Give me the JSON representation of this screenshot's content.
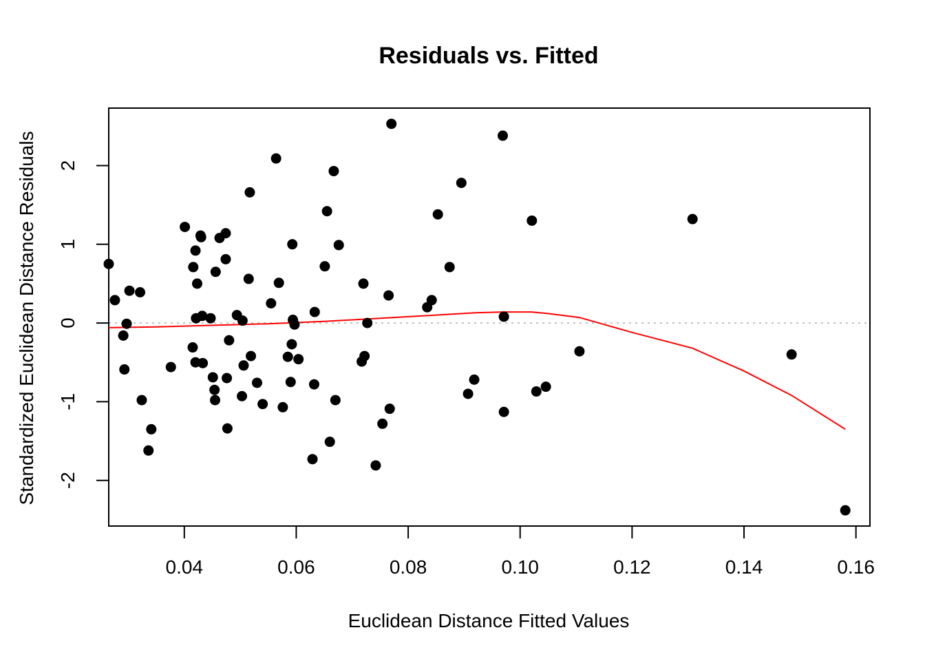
{
  "chart_data": {
    "type": "scatter",
    "title": "Residuals vs. Fitted",
    "xlabel": "Euclidean Distance Fitted Values",
    "ylabel": "Standardized Euclidean Distance Residuals",
    "xlim": [
      0.0265,
      0.1625
    ],
    "ylim": [
      -2.58,
      2.73
    ],
    "x_ticks": [
      0.04,
      0.06,
      0.08,
      0.1,
      0.12,
      0.14,
      0.16
    ],
    "x_tick_labels": [
      "0.04",
      "0.06",
      "0.08",
      "0.10",
      "0.12",
      "0.14",
      "0.16"
    ],
    "y_ticks": [
      -2,
      -1,
      0,
      1,
      2
    ],
    "y_tick_labels": [
      "-2",
      "-1",
      "0",
      "1",
      "2"
    ],
    "grid": false,
    "reference_line": {
      "y": 0,
      "style": "dotted",
      "color": "#bebebe"
    },
    "colors": {
      "points": "#000000",
      "smooth": "#ff0000"
    },
    "points": [
      [
        0.0265,
        0.75
      ],
      [
        0.0276,
        0.29
      ],
      [
        0.0291,
        -0.16
      ],
      [
        0.0293,
        -0.59
      ],
      [
        0.0297,
        -0.01
      ],
      [
        0.0302,
        0.41
      ],
      [
        0.0321,
        0.39
      ],
      [
        0.0324,
        -0.98
      ],
      [
        0.0336,
        -1.62
      ],
      [
        0.0341,
        -1.35
      ],
      [
        0.0376,
        -0.56
      ],
      [
        0.0401,
        1.22
      ],
      [
        0.0415,
        -0.31
      ],
      [
        0.0416,
        0.71
      ],
      [
        0.042,
        0.92
      ],
      [
        0.042,
        -0.5
      ],
      [
        0.0421,
        0.06
      ],
      [
        0.0423,
        0.5
      ],
      [
        0.0429,
        1.11
      ],
      [
        0.043,
        1.09
      ],
      [
        0.0432,
        0.09
      ],
      [
        0.0433,
        -0.51
      ],
      [
        0.0447,
        0.06
      ],
      [
        0.0451,
        -0.69
      ],
      [
        0.0454,
        -0.85
      ],
      [
        0.0455,
        -0.98
      ],
      [
        0.0456,
        0.65
      ],
      [
        0.0463,
        1.08
      ],
      [
        0.0474,
        1.14
      ],
      [
        0.0474,
        0.81
      ],
      [
        0.0476,
        -0.7
      ],
      [
        0.0477,
        -1.34
      ],
      [
        0.048,
        -0.22
      ],
      [
        0.0494,
        0.1
      ],
      [
        0.0503,
        -0.93
      ],
      [
        0.0504,
        0.03
      ],
      [
        0.0506,
        -0.54
      ],
      [
        0.0515,
        0.56
      ],
      [
        0.0517,
        1.66
      ],
      [
        0.0519,
        -0.42
      ],
      [
        0.053,
        -0.76
      ],
      [
        0.054,
        -1.03
      ],
      [
        0.0555,
        0.25
      ],
      [
        0.0564,
        2.09
      ],
      [
        0.0569,
        0.51
      ],
      [
        0.0576,
        -1.07
      ],
      [
        0.0585,
        -0.43
      ],
      [
        0.059,
        -0.75
      ],
      [
        0.0592,
        -0.27
      ],
      [
        0.0593,
        1.0
      ],
      [
        0.0594,
        0.04
      ],
      [
        0.0597,
        -0.02
      ],
      [
        0.0604,
        -0.46
      ],
      [
        0.0629,
        -1.73
      ],
      [
        0.0632,
        -0.78
      ],
      [
        0.0633,
        0.14
      ],
      [
        0.0651,
        0.72
      ],
      [
        0.0655,
        1.42
      ],
      [
        0.066,
        -1.51
      ],
      [
        0.0667,
        1.93
      ],
      [
        0.067,
        -0.98
      ],
      [
        0.0676,
        0.99
      ],
      [
        0.0717,
        -0.49
      ],
      [
        0.072,
        0.5
      ],
      [
        0.0722,
        -0.42
      ],
      [
        0.0727,
        0.0
      ],
      [
        0.0742,
        -1.81
      ],
      [
        0.0754,
        -1.28
      ],
      [
        0.0765,
        0.35
      ],
      [
        0.0767,
        -1.09
      ],
      [
        0.077,
        2.53
      ],
      [
        0.0834,
        0.2
      ],
      [
        0.0842,
        0.29
      ],
      [
        0.0853,
        1.38
      ],
      [
        0.0874,
        0.71
      ],
      [
        0.0895,
        1.78
      ],
      [
        0.0907,
        -0.9
      ],
      [
        0.0918,
        -0.72
      ],
      [
        0.0969,
        2.38
      ],
      [
        0.0971,
        0.08
      ],
      [
        0.0971,
        -1.13
      ],
      [
        0.1021,
        1.3
      ],
      [
        0.1029,
        -0.87
      ],
      [
        0.1046,
        -0.81
      ],
      [
        0.1106,
        -0.36
      ],
      [
        0.1308,
        1.32
      ],
      [
        0.1485,
        -0.4
      ],
      [
        0.1581,
        -2.38
      ]
    ],
    "smooth_line": [
      [
        0.0265,
        -0.06
      ],
      [
        0.035,
        -0.05
      ],
      [
        0.045,
        -0.03
      ],
      [
        0.055,
        -0.01
      ],
      [
        0.065,
        0.02
      ],
      [
        0.075,
        0.06
      ],
      [
        0.085,
        0.1
      ],
      [
        0.092,
        0.13
      ],
      [
        0.097,
        0.14
      ],
      [
        0.102,
        0.14
      ],
      [
        0.105,
        0.12
      ],
      [
        0.1106,
        0.07
      ],
      [
        0.12,
        -0.12
      ],
      [
        0.1308,
        -0.32
      ],
      [
        0.14,
        -0.61
      ],
      [
        0.1485,
        -0.92
      ],
      [
        0.1581,
        -1.35
      ]
    ]
  }
}
